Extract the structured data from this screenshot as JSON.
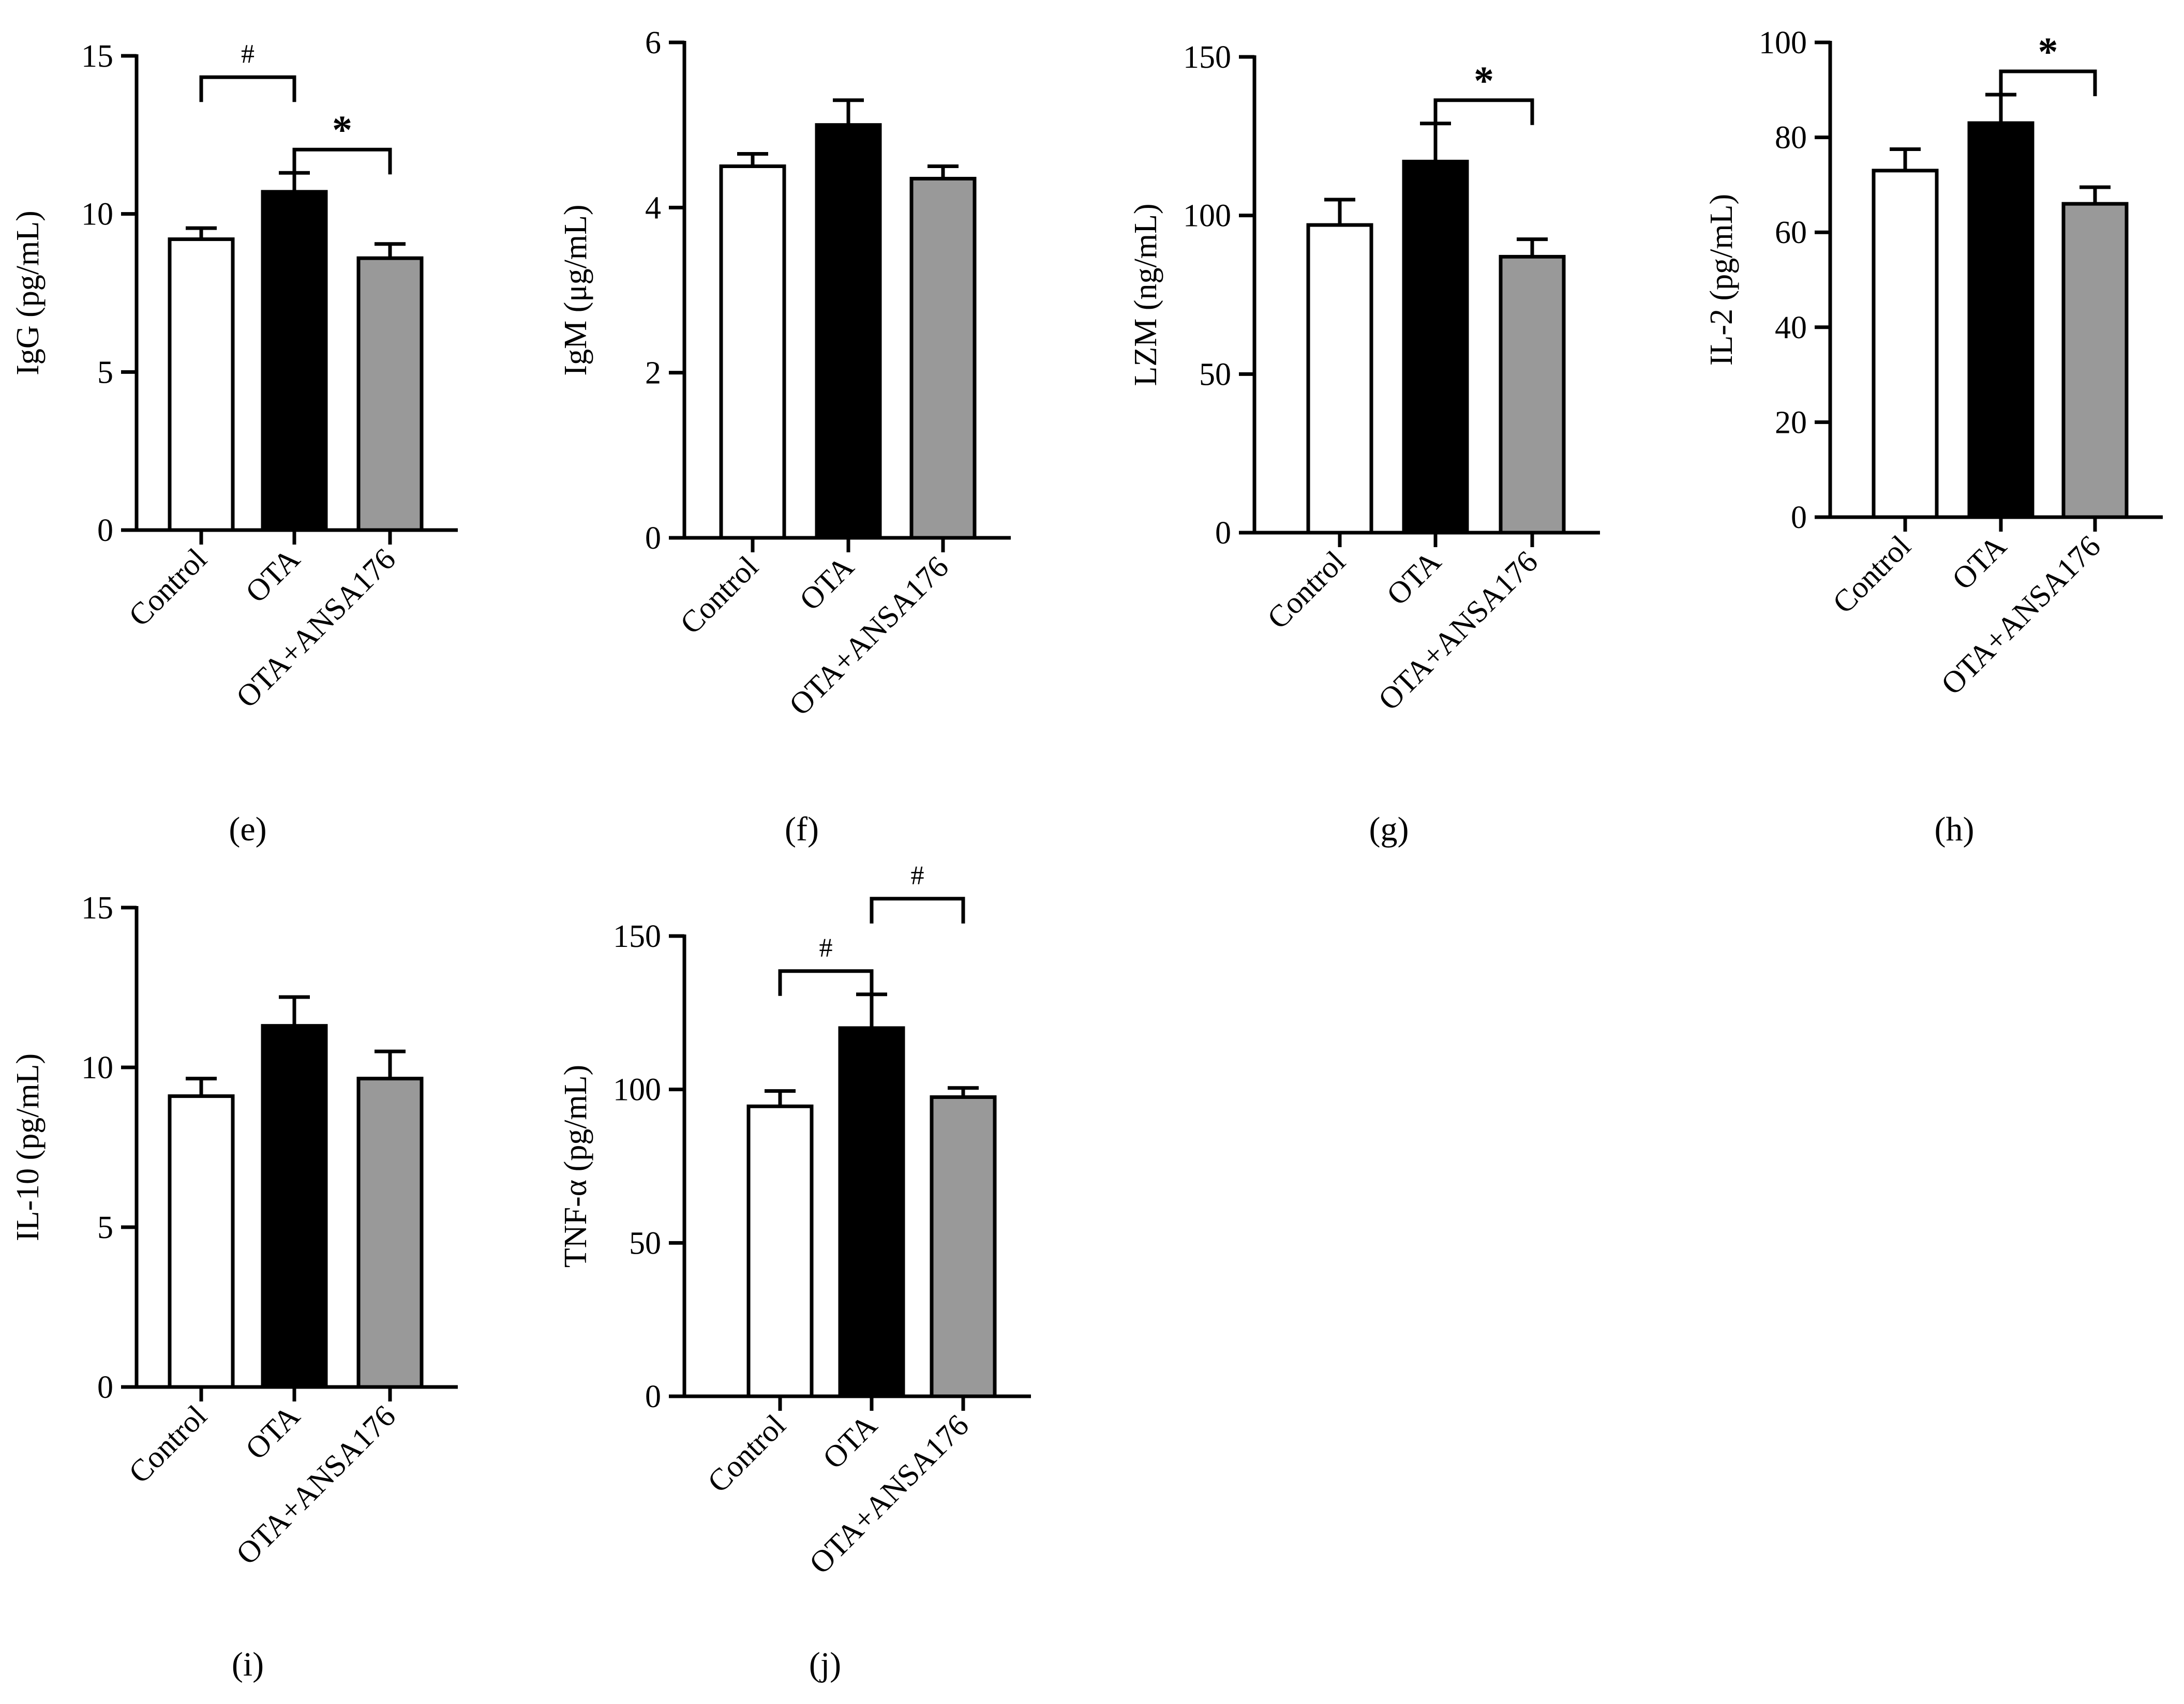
{
  "figure": {
    "categories": [
      "Control",
      "OTA",
      "OTA+ANSA176"
    ],
    "bar_fills": [
      "#ffffff",
      "#000000",
      "#999999"
    ],
    "bar_stroke": "#000000"
  },
  "chart_data": [
    {
      "type": "bar",
      "panel": "(e)",
      "title": "",
      "xlabel": "",
      "ylabel": "IgG (pg/mL)",
      "categories": [
        "Control",
        "OTA",
        "OTA+ANSA176"
      ],
      "values": [
        9.2,
        10.7,
        8.6
      ],
      "errors": [
        0.35,
        0.6,
        0.45
      ],
      "ylim": [
        0,
        15
      ],
      "yticks": [
        0,
        5,
        10,
        15
      ],
      "ytick_labels": [
        "0",
        "5",
        "10",
        "15"
      ],
      "significance": [
        {
          "from": 0,
          "to": 1,
          "mark": "#",
          "level": 1
        },
        {
          "from": 1,
          "to": 2,
          "mark": "*",
          "level": 0
        }
      ]
    },
    {
      "type": "bar",
      "panel": "(f)",
      "title": "",
      "xlabel": "",
      "ylabel": "IgM (μg/mL)",
      "categories": [
        "Control",
        "OTA",
        "OTA+ANSA176"
      ],
      "values": [
        4.5,
        5.0,
        4.35
      ],
      "errors": [
        0.15,
        0.3,
        0.15
      ],
      "ylim": [
        0,
        6
      ],
      "yticks": [
        0,
        2,
        4,
        6
      ],
      "ytick_labels": [
        "0",
        "2",
        "4",
        "6"
      ],
      "significance": []
    },
    {
      "type": "bar",
      "panel": "(g)",
      "title": "",
      "xlabel": "",
      "ylabel": "LZM (ng/mL)",
      "categories": [
        "Control",
        "OTA",
        "OTA+ANSA176"
      ],
      "values": [
        97,
        117,
        87
      ],
      "errors": [
        8,
        12,
        5.5
      ],
      "ylim": [
        0,
        150
      ],
      "yticks": [
        0,
        50,
        100,
        150
      ],
      "ytick_labels": [
        "0",
        "50",
        "100",
        "150"
      ],
      "significance": [
        {
          "from": 1,
          "to": 2,
          "mark": "*",
          "level": 0
        }
      ]
    },
    {
      "type": "bar",
      "panel": "(h)",
      "title": "",
      "xlabel": "",
      "ylabel": "IL-2 (pg/mL)",
      "categories": [
        "Control",
        "OTA",
        "OTA+ANSA176"
      ],
      "values": [
        73,
        83,
        66
      ],
      "errors": [
        4.5,
        6,
        3.5
      ],
      "ylim": [
        0,
        100
      ],
      "yticks": [
        0,
        20,
        40,
        60,
        80,
        100
      ],
      "ytick_labels": [
        "0",
        "20",
        "40",
        "60",
        "80",
        "100"
      ],
      "significance": [
        {
          "from": 1,
          "to": 2,
          "mark": "*",
          "level": 0
        }
      ]
    },
    {
      "type": "bar",
      "panel": "(i)",
      "title": "",
      "xlabel": "",
      "ylabel": "IL-10 (pg/mL)",
      "categories": [
        "Control",
        "OTA",
        "OTA+ANSA176"
      ],
      "values": [
        9.1,
        11.3,
        9.65
      ],
      "errors": [
        0.55,
        0.9,
        0.85
      ],
      "ylim": [
        0,
        15
      ],
      "yticks": [
        0,
        5,
        10,
        15
      ],
      "ytick_labels": [
        "0",
        "5",
        "10",
        "15"
      ],
      "significance": []
    },
    {
      "type": "bar",
      "panel": "(j)",
      "title": "",
      "xlabel": "",
      "ylabel": "TNF-α (pg/mL)",
      "categories": [
        "Control",
        "OTA",
        "OTA+ANSA176"
      ],
      "values": [
        94.5,
        120,
        97.5
      ],
      "errors": [
        5,
        11,
        3
      ],
      "ylim": [
        0,
        150
      ],
      "yticks": [
        0,
        50,
        100,
        150
      ],
      "ytick_labels": [
        "0",
        "50",
        "100",
        "150"
      ],
      "significance": [
        {
          "from": 0,
          "to": 1,
          "mark": "#",
          "level": 0
        },
        {
          "from": 1,
          "to": 2,
          "mark": "#",
          "level": 1
        }
      ]
    }
  ]
}
